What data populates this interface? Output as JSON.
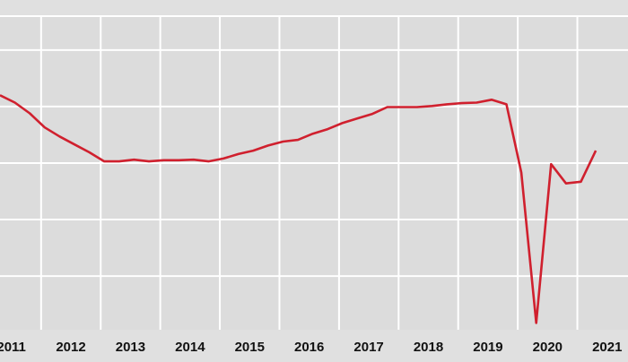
{
  "chart_data": {
    "type": "line",
    "title": "",
    "xlabel": "",
    "ylabel": "",
    "x_tick_labels": [
      "2011",
      "2012",
      "2013",
      "2014",
      "2015",
      "2016",
      "2017",
      "2018",
      "2019",
      "2020",
      "2021"
    ],
    "xlim": [
      2011.31,
      2021.85
    ],
    "ylim": [
      -0.95,
      4.6
    ],
    "y_gridlines": [
      0,
      1,
      2,
      3,
      4
    ],
    "grid": true,
    "legend": "none",
    "colors": {
      "line": "#d0202e",
      "background": "#dddddd",
      "grid": "#ffffff"
    },
    "series": [
      {
        "x": [
          2011.31,
          2011.56,
          2011.81,
          2012.06,
          2012.31,
          2012.56,
          2012.81,
          2013.06,
          2013.31,
          2013.56,
          2013.81,
          2014.06,
          2014.31,
          2014.56,
          2014.81,
          2015.06,
          2015.31,
          2015.56,
          2015.81,
          2016.06,
          2016.31,
          2016.56,
          2016.81,
          2017.06,
          2017.31,
          2017.56,
          2017.81,
          2018.06,
          2018.31,
          2018.56,
          2018.81,
          2019.06,
          2019.31,
          2019.56,
          2019.81,
          2020.06,
          2020.31,
          2020.56,
          2020.81,
          2021.06,
          2021.31
        ],
        "y": [
          3.2,
          3.07,
          2.88,
          2.63,
          2.47,
          2.33,
          2.19,
          2.03,
          2.03,
          2.06,
          2.03,
          2.05,
          2.05,
          2.06,
          2.03,
          2.08,
          2.16,
          2.22,
          2.31,
          2.38,
          2.41,
          2.52,
          2.6,
          2.71,
          2.79,
          2.87,
          2.99,
          2.99,
          2.99,
          3.01,
          3.04,
          3.06,
          3.07,
          3.12,
          3.04,
          1.83,
          -0.83,
          1.98,
          1.64,
          1.67,
          2.22
        ]
      }
    ]
  }
}
